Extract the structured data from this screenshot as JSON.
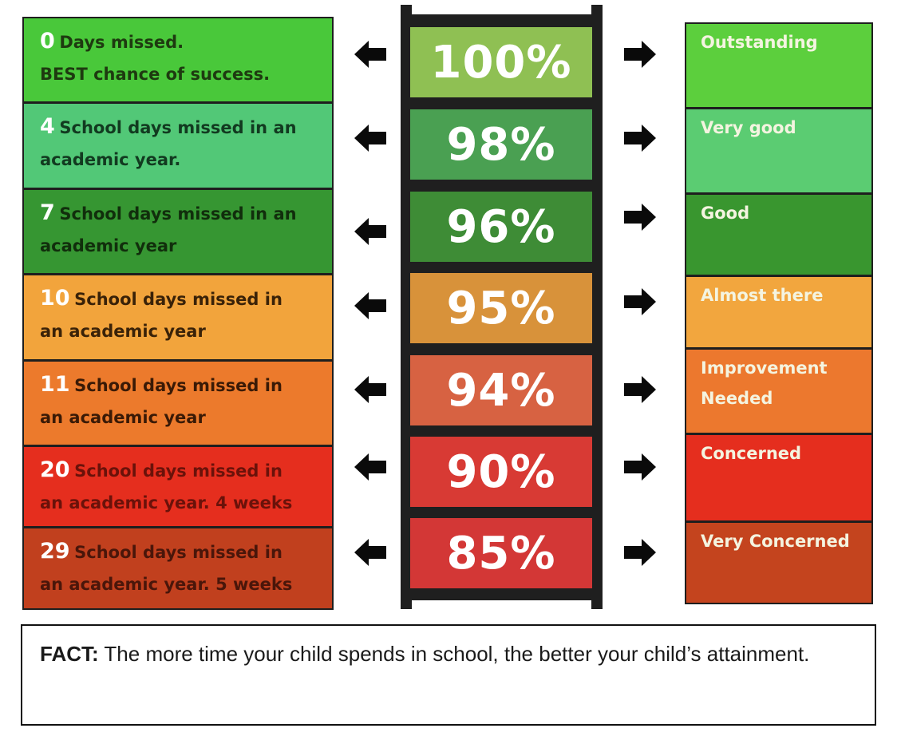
{
  "rows": [
    {
      "num": "0",
      "line1": "Days missed.",
      "line2": "BEST chance of success.",
      "percent": "100%",
      "rating": "Outstanding",
      "left_color": "#49c83a",
      "mid_color": "#8fc053",
      "right_color": "#5ccf3d",
      "text_color": "#1e3a10",
      "num_color": "#ffffff"
    },
    {
      "num": "4",
      "line1": "School days missed in an",
      "line2": "academic year.",
      "percent": "98%",
      "rating": "Very good",
      "left_color": "#52c877",
      "mid_color": "#4aa052",
      "right_color": "#5bcc72",
      "text_color": "#123a20",
      "num_color": "#ffffff"
    },
    {
      "num": "7",
      "line1": "School days missed in an",
      "line2": "academic year",
      "percent": "96%",
      "rating": "Good",
      "left_color": "#369632",
      "mid_color": "#3e8c36",
      "right_color": "#39962f",
      "text_color": "#112e0c",
      "num_color": "#ffffff"
    },
    {
      "num": "10",
      "line1": "School days missed in",
      "line2": "an academic year",
      "percent": "95%",
      "rating": "Almost there",
      "left_color": "#f2a43c",
      "mid_color": "#d8923a",
      "right_color": "#f2a63e",
      "text_color": "#3a2208",
      "num_color": "#ffffff"
    },
    {
      "num": "11",
      "line1": "School days missed in",
      "line2": "an academic year",
      "percent": "94%",
      "rating": "Improvement Needed",
      "left_color": "#ec7a2c",
      "mid_color": "#d76242",
      "right_color": "#ec782e",
      "text_color": "#3a1a06",
      "num_color": "#ffffff"
    },
    {
      "num": "20",
      "line1": "School days missed in",
      "line2": "an academic year. 4 weeks",
      "percent": "90%",
      "rating": "Concerned",
      "left_color": "#e52e1e",
      "mid_color": "#d83a34",
      "right_color": "#e52e1e",
      "text_color": "#6a120a",
      "num_color": "#ffffff"
    },
    {
      "num": "29",
      "line1": "School days missed in",
      "line2": "an academic year. 5 weeks",
      "percent": "85%",
      "rating": "Very Concerned",
      "left_color": "#c1401e",
      "mid_color": "#d33736",
      "right_color": "#c4441e",
      "text_color": "#4a160a",
      "num_color": "#ffffff"
    }
  ],
  "fact": {
    "label": "FACT:",
    "text": " The more time your child spends in school, the better your child’s attainment."
  },
  "frame_color": "#1f1f1f",
  "arrow_color": "#0a0a0a"
}
